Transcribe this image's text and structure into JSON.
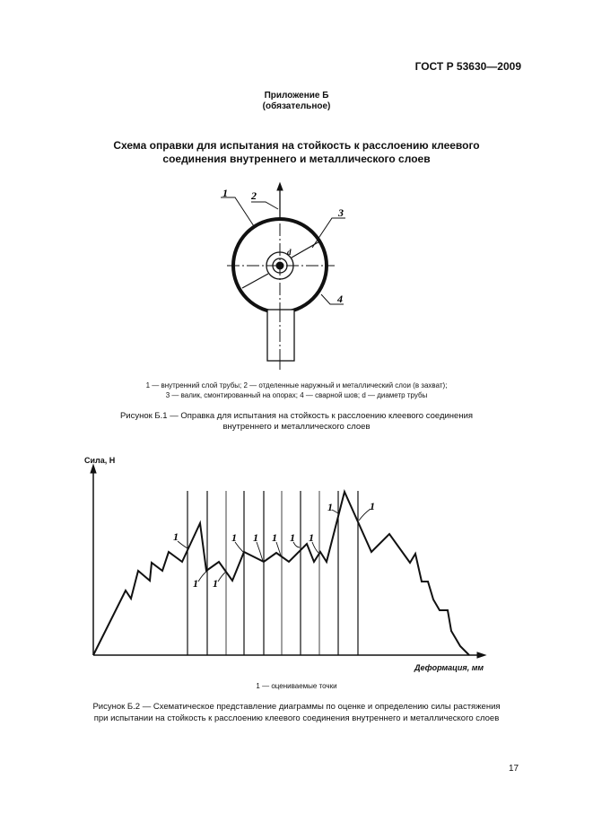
{
  "header": {
    "standard": "ГОСТ Р 53630—2009"
  },
  "appendix": {
    "title": "Приложение Б",
    "status": "(обязательное)"
  },
  "section_title": [
    "Схема оправки для испытания на стойкость к расслоению клеевого",
    "соединения внутреннего и металлического слоев"
  ],
  "figure1": {
    "labels": [
      "1",
      "2",
      "3",
      "4",
      "d"
    ],
    "legend": [
      "1 — внутренний слой трубы; 2 — отделенные наружный и металлический слои (в захват);",
      "3 — валик, смонтированный на опорах; 4 — сварной шов; d — диаметр трубы"
    ],
    "caption": [
      "Рисунок  Б.1 — Оправка для испытания на стойкость к расслоению клеевого соединения",
      "внутреннего и металлического слоев"
    ]
  },
  "figure2": {
    "y_axis_label": "Сила, Н",
    "x_axis_label": "Деформация, мм",
    "point_label": "1",
    "legend": "1 — оцениваемые точки",
    "caption": [
      "Рисунок  Б.2 — Схематическое представление диаграммы по оценке и определению силы растяжения",
      "при испытании на стойкость к расслоению клеевого соединения внутреннего и металлического слоев"
    ]
  },
  "footer": {
    "page_number": "17"
  }
}
